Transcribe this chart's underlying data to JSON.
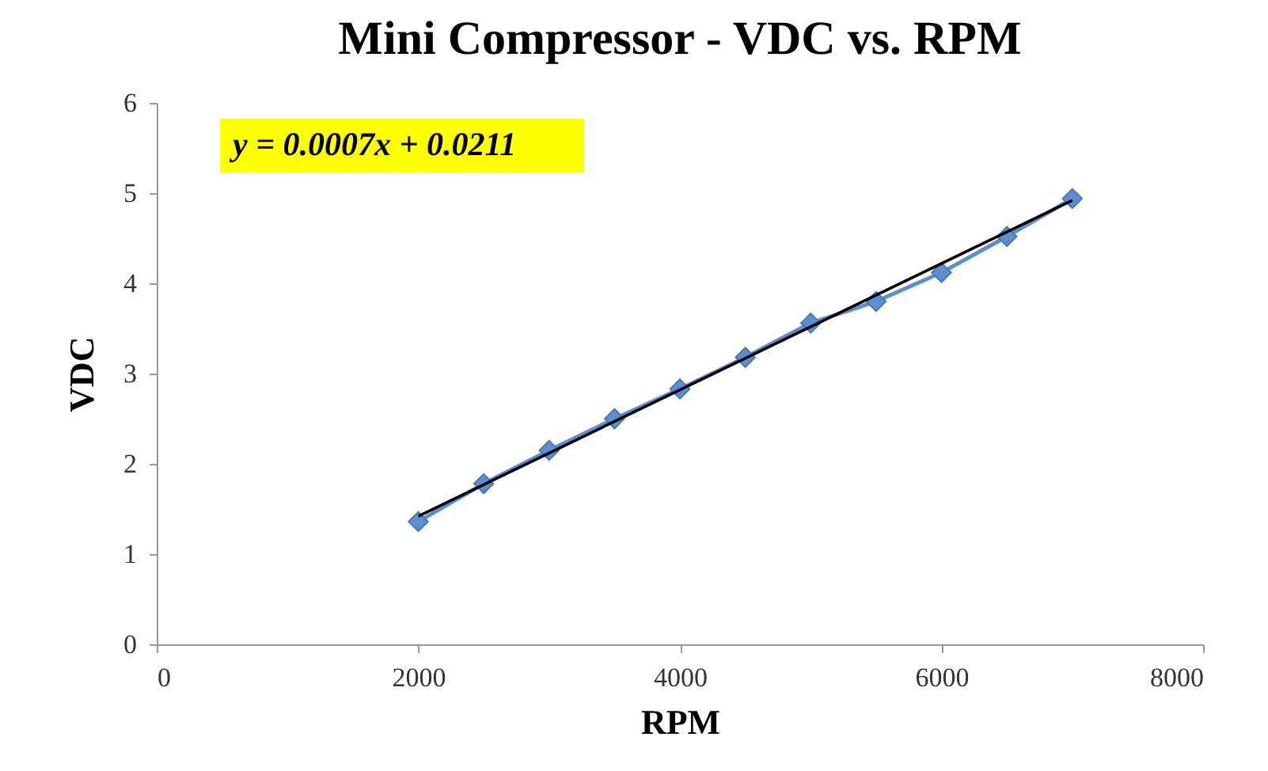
{
  "chart_data": {
    "type": "line",
    "title": "Mini Compressor - VDC vs. RPM",
    "xlabel": "RPM",
    "ylabel": "VDC",
    "x": [
      2000,
      2500,
      3000,
      3500,
      4000,
      4500,
      5000,
      5500,
      6000,
      6500,
      7000
    ],
    "series": [
      {
        "color": "#5b8fd0",
        "marker": "diamond",
        "values": [
          1.36,
          1.78,
          2.15,
          2.5,
          2.83,
          3.18,
          3.56,
          3.8,
          4.12,
          4.52,
          4.94
        ]
      },
      {
        "color": "#000000",
        "marker": "none",
        "x": [
          2000,
          7000
        ],
        "values": [
          1.42,
          4.92
        ]
      }
    ],
    "annotations": [
      "y = 0.0007x + 0.0211"
    ],
    "xlim": [
      0,
      8000
    ],
    "xticks": [
      0,
      2000,
      4000,
      6000,
      8000
    ],
    "ylim": [
      0,
      6
    ],
    "yticks": [
      0,
      1,
      2,
      3,
      4,
      5,
      6
    ],
    "grid": false
  }
}
